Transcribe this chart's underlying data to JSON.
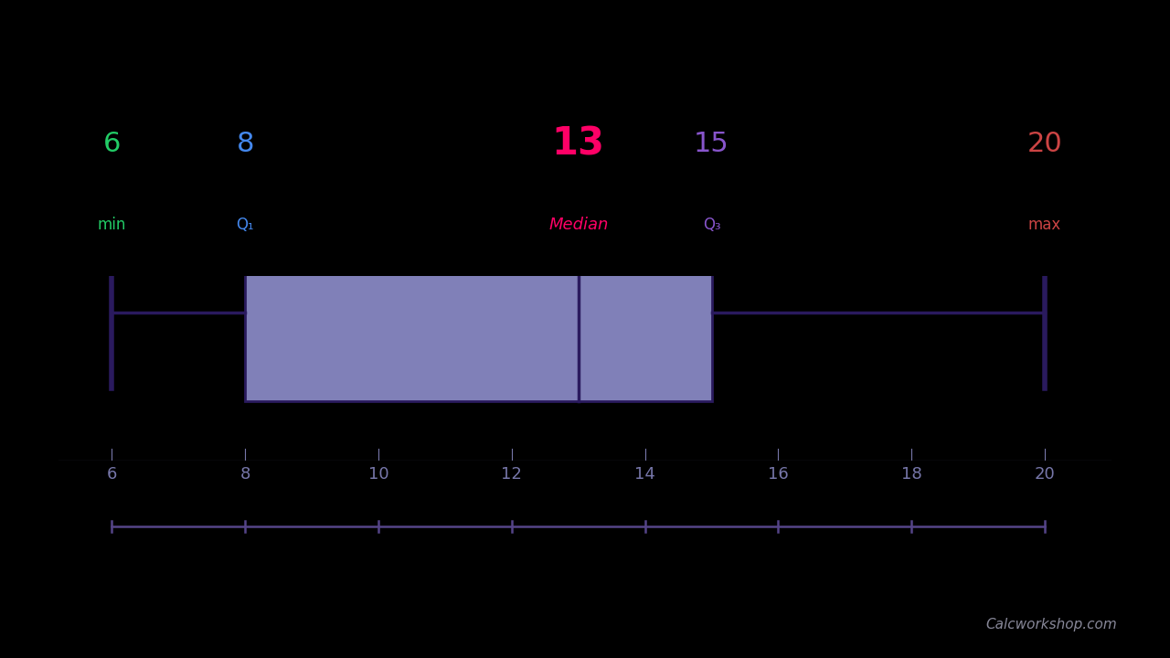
{
  "bg_color": "#000000",
  "box_color": "#8080b8",
  "box_edge_color": "#2a1a5e",
  "whisker_color": "#2a1a5e",
  "min_val": 6,
  "q1": 8,
  "median": 13,
  "q3": 15,
  "max_val": 20,
  "xlim": [
    5.2,
    21.0
  ],
  "xticks": [
    6,
    8,
    10,
    12,
    14,
    16,
    18,
    20
  ],
  "axis_label_color": "#7777aa",
  "ruler_color": "#554488",
  "labels_min": {
    "value": "6",
    "label": "min",
    "col_v": "#22cc66",
    "col_l": "#22cc66",
    "bold": false,
    "vsize": 22,
    "lsize": 12,
    "italic": false
  },
  "labels_q1": {
    "value": "8",
    "label": "Q₁",
    "col_v": "#4488ee",
    "col_l": "#4488ee",
    "bold": false,
    "vsize": 22,
    "lsize": 12,
    "italic": false
  },
  "labels_median": {
    "value": "13",
    "label": "Median",
    "col_v": "#ff0066",
    "col_l": "#ff0066",
    "bold": true,
    "vsize": 30,
    "lsize": 13,
    "italic": true
  },
  "labels_q3": {
    "value": "15",
    "label": "Q₃",
    "col_v": "#8855cc",
    "col_l": "#8855cc",
    "bold": false,
    "vsize": 22,
    "lsize": 12,
    "italic": false
  },
  "labels_max": {
    "value": "20",
    "label": "max",
    "col_v": "#cc4444",
    "col_l": "#cc4444",
    "bold": false,
    "vsize": 22,
    "lsize": 12,
    "italic": false
  },
  "watermark": "Calcworkshop.com",
  "watermark_color": "#888899"
}
